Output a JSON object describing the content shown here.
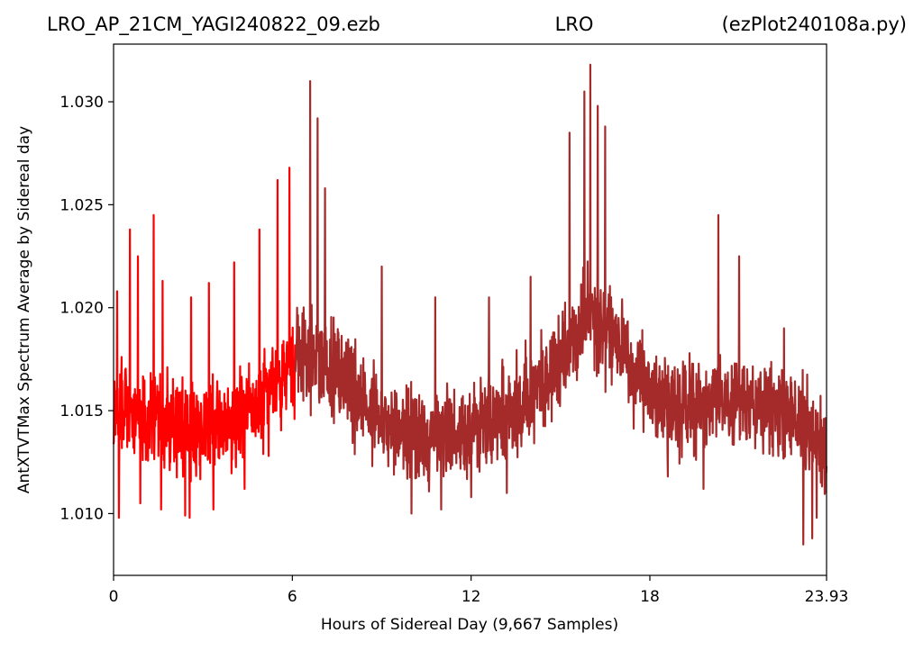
{
  "chart_data": {
    "type": "line",
    "title": {
      "left": "LRO_AP_21CM_YAGI240822_09.ezb",
      "center": "LRO",
      "right": "(ezPlot240108a.py)"
    },
    "xlabel": "Hours of Sidereal Day  (9,667 Samples)",
    "ylabel": "AntXTVTMax Spectrum Average by Sidereal day",
    "xlim": [
      0,
      23.93
    ],
    "ylim": [
      1.007,
      1.0328
    ],
    "x_ticks": [
      {
        "value": 0,
        "label": "0"
      },
      {
        "value": 6,
        "label": "6"
      },
      {
        "value": 12,
        "label": "12"
      },
      {
        "value": 18,
        "label": "18"
      },
      {
        "value": 23.93,
        "label": "23.93"
      }
    ],
    "y_ticks": [
      {
        "value": 1.01,
        "label": "1.010"
      },
      {
        "value": 1.015,
        "label": "1.015"
      },
      {
        "value": 1.02,
        "label": "1.020"
      },
      {
        "value": 1.025,
        "label": "1.025"
      },
      {
        "value": 1.03,
        "label": "1.030"
      }
    ],
    "grid": false,
    "legend": "none",
    "series": [
      {
        "color": "#ff0000",
        "x_range": [
          0,
          6.1
        ],
        "baseline": [
          [
            0,
            1.015
          ],
          [
            1.0,
            1.0148
          ],
          [
            2.0,
            1.0142
          ],
          [
            2.5,
            1.014
          ],
          [
            3.5,
            1.0142
          ],
          [
            4.5,
            1.0148
          ],
          [
            5.2,
            1.0158
          ],
          [
            6.1,
            1.0172
          ]
        ],
        "band_halfwidth": 0.0028,
        "peaks": [
          [
            0.12,
            1.0208
          ],
          [
            0.55,
            1.0238
          ],
          [
            0.82,
            1.0225
          ],
          [
            1.35,
            1.0245
          ],
          [
            1.65,
            1.0213
          ],
          [
            2.6,
            1.0205
          ],
          [
            3.2,
            1.0212
          ],
          [
            4.05,
            1.0222
          ],
          [
            4.9,
            1.0238
          ],
          [
            5.5,
            1.0262
          ],
          [
            5.9,
            1.0268
          ]
        ],
        "troughs": [
          [
            0.18,
            1.0098
          ],
          [
            0.9,
            1.0105
          ],
          [
            1.6,
            1.0102
          ],
          [
            2.4,
            1.0099
          ],
          [
            2.55,
            1.0098
          ],
          [
            3.35,
            1.0102
          ],
          [
            4.4,
            1.0112
          ],
          [
            5.2,
            1.0128
          ]
        ]
      },
      {
        "color": "#a52a2a",
        "x_range": [
          6.1,
          23.93
        ],
        "baseline": [
          [
            6.1,
            1.0175
          ],
          [
            6.6,
            1.0178
          ],
          [
            7.5,
            1.0168
          ],
          [
            8.5,
            1.0152
          ],
          [
            9.5,
            1.014
          ],
          [
            10.5,
            1.0138
          ],
          [
            11.5,
            1.014
          ],
          [
            12.5,
            1.0145
          ],
          [
            13.5,
            1.015
          ],
          [
            14.5,
            1.0165
          ],
          [
            15.5,
            1.0185
          ],
          [
            16.0,
            1.0195
          ],
          [
            16.8,
            1.0185
          ],
          [
            17.5,
            1.0168
          ],
          [
            18.5,
            1.0155
          ],
          [
            19.5,
            1.0152
          ],
          [
            20.5,
            1.0155
          ],
          [
            21.5,
            1.015
          ],
          [
            22.5,
            1.0148
          ],
          [
            23.2,
            1.0142
          ],
          [
            23.93,
            1.013
          ]
        ],
        "band_halfwidth": 0.0028,
        "peaks": [
          [
            6.6,
            1.031
          ],
          [
            6.85,
            1.0292
          ],
          [
            7.1,
            1.0258
          ],
          [
            9.0,
            1.022
          ],
          [
            10.8,
            1.0205
          ],
          [
            12.6,
            1.0205
          ],
          [
            14.0,
            1.0215
          ],
          [
            15.3,
            1.0285
          ],
          [
            15.8,
            1.0305
          ],
          [
            16.0,
            1.0318
          ],
          [
            16.25,
            1.0298
          ],
          [
            16.5,
            1.0288
          ],
          [
            20.3,
            1.0245
          ],
          [
            21.0,
            1.0225
          ],
          [
            22.5,
            1.019
          ]
        ],
        "troughs": [
          [
            10.0,
            1.01
          ],
          [
            11.0,
            1.0102
          ],
          [
            12.0,
            1.0108
          ],
          [
            13.2,
            1.011
          ],
          [
            18.6,
            1.0118
          ],
          [
            19.8,
            1.0112
          ],
          [
            23.15,
            1.0085
          ],
          [
            23.45,
            1.0088
          ],
          [
            23.6,
            1.0098
          ]
        ]
      }
    ]
  }
}
